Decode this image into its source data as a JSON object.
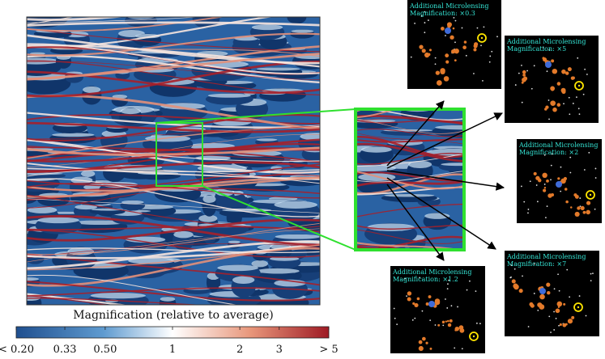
{
  "colorbar": {
    "title": "Magnification (relative to average)",
    "scale": "log",
    "ticks": [
      "< 0.20",
      "0.33",
      "0.50",
      "1",
      "2",
      "3",
      "> 5"
    ],
    "tick_values": [
      0.2,
      0.33,
      0.5,
      1,
      2,
      3,
      5
    ],
    "colors": [
      "#1f4f8f",
      "#5f9bd0",
      "#ffffff",
      "#e8967a",
      "#9e1a24"
    ]
  },
  "zoom_color": "#2fe02f",
  "panels": [
    {
      "id": "p1",
      "line1": "Additional Microlensing",
      "line2": "Magnification: ×0.3"
    },
    {
      "id": "p2",
      "line1": "Additional Microlensing",
      "line2": "Magnification: ×5"
    },
    {
      "id": "p3",
      "line1": "Additional Microlensing",
      "line2": "Magnification: ×2"
    },
    {
      "id": "p4",
      "line1": "Additional Microlensing",
      "line2": "Magnification: ×1.2"
    },
    {
      "id": "p5",
      "line1": "Additional Microlensing",
      "line2": "Magnification: ×7"
    }
  ],
  "icons": {
    "marker": "yellow-circle-icon",
    "arrow": "arrow-icon"
  }
}
